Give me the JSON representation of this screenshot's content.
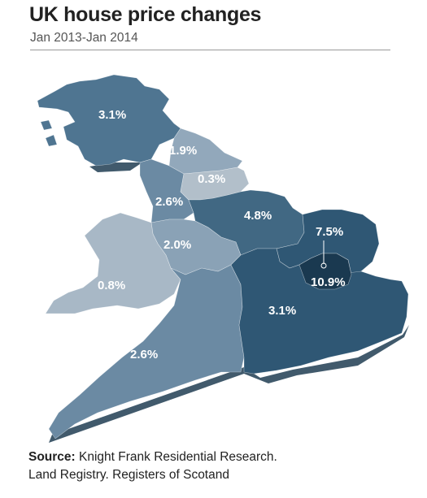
{
  "header": {
    "title": "UK house price changes",
    "subtitle": "Jan 2013-Jan 2014"
  },
  "map": {
    "regions": [
      {
        "id": "scotland",
        "label": "3.1%",
        "value": 3.1,
        "color": "#4f7591"
      },
      {
        "id": "north-east",
        "label": "1.9%",
        "value": 1.9,
        "color": "#92a8bb"
      },
      {
        "id": "yorkshire-humber",
        "label": "0.3%",
        "value": 0.3,
        "color": "#b2bfca"
      },
      {
        "id": "north-west",
        "label": "2.6%",
        "value": 2.6,
        "color": "#6b8aa3"
      },
      {
        "id": "east-midlands",
        "label": "4.8%",
        "value": 4.8,
        "color": "#416883"
      },
      {
        "id": "west-midlands",
        "label": "2.0%",
        "value": 2.0,
        "color": "#8aa2b6"
      },
      {
        "id": "wales",
        "label": "0.8%",
        "value": 0.8,
        "color": "#a8b8c6"
      },
      {
        "id": "east-of-england",
        "label": "7.5%",
        "value": 7.5,
        "color": "#2f5774"
      },
      {
        "id": "london",
        "label": "10.9%",
        "value": 10.9,
        "color": "#1a3950"
      },
      {
        "id": "south-east",
        "label": "3.1%",
        "value": 3.1,
        "color": "#2f5774"
      },
      {
        "id": "south-west",
        "label": "2.6%",
        "value": 2.6,
        "color": "#6b8aa3"
      }
    ]
  },
  "source": {
    "label": "Source:",
    "line1": " Knight Frank Residential Research.",
    "line2": "Land Registry. Registers of Scotand"
  }
}
